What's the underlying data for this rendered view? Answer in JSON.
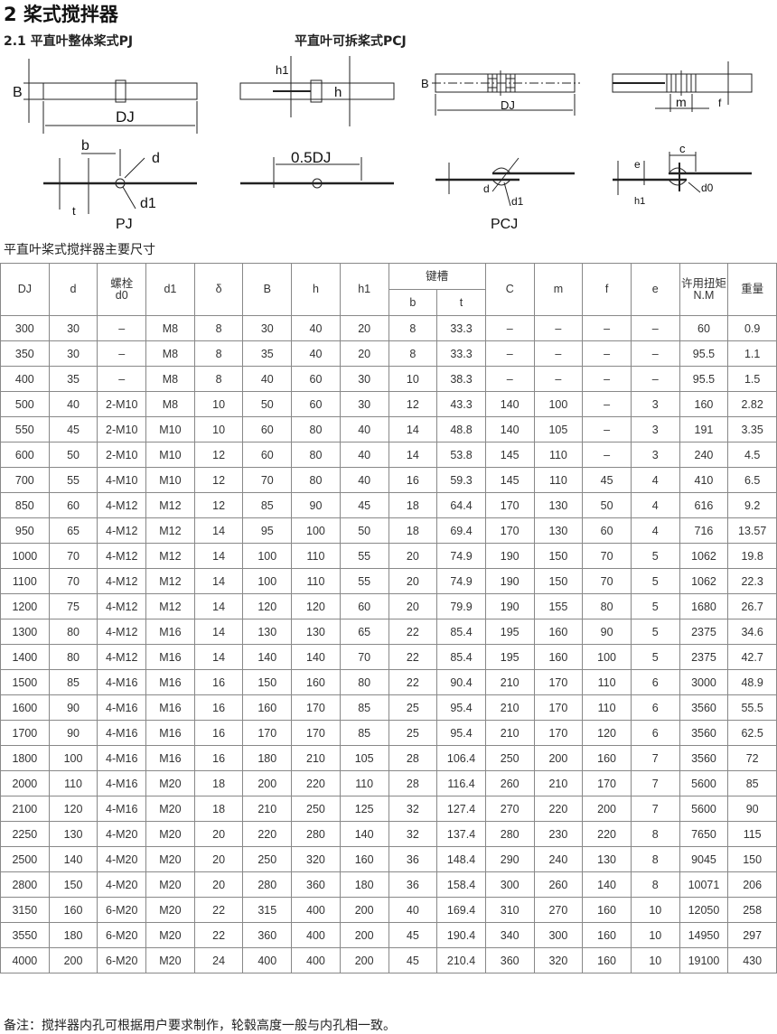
{
  "title": "2 桨式搅拌器",
  "subtitle_pj": "2.1 平直叶整体桨式PJ",
  "subtitle_pcj": "平直叶可拆桨式PCJ",
  "diagram_labels": {
    "B": "B",
    "DJ": "DJ",
    "h1": "h1",
    "h": "h",
    "b": "b",
    "d": "d",
    "d1": "d1",
    "t": "t",
    "half_dj": "0.5DJ",
    "pj": "PJ",
    "pcj": "PCJ",
    "m": "m",
    "f": "f",
    "c": "c",
    "e": "e",
    "d0": "d0"
  },
  "table_caption": "平直叶桨式搅拌器主要尺寸",
  "table": {
    "headers": {
      "DJ": "DJ",
      "d": "d",
      "d0_top": "螺栓",
      "d0": "d0",
      "d1": "d1",
      "delta": "δ",
      "B": "B",
      "h": "h",
      "h1": "h1",
      "keyway": "键槽",
      "b": "b",
      "t": "t",
      "C": "C",
      "m": "m",
      "f": "f",
      "e": "e",
      "torque_top": "许用扭矩",
      "torque_unit": "N.M",
      "weight": "重量"
    },
    "rows": [
      [
        "300",
        "30",
        "–",
        "M8",
        "8",
        "30",
        "40",
        "20",
        "8",
        "33.3",
        "–",
        "–",
        "–",
        "–",
        "60",
        "0.9"
      ],
      [
        "350",
        "30",
        "–",
        "M8",
        "8",
        "35",
        "40",
        "20",
        "8",
        "33.3",
        "–",
        "–",
        "–",
        "–",
        "95.5",
        "1.1"
      ],
      [
        "400",
        "35",
        "–",
        "M8",
        "8",
        "40",
        "60",
        "30",
        "10",
        "38.3",
        "–",
        "–",
        "–",
        "–",
        "95.5",
        "1.5"
      ],
      [
        "500",
        "40",
        "2-M10",
        "M8",
        "10",
        "50",
        "60",
        "30",
        "12",
        "43.3",
        "140",
        "100",
        "–",
        "3",
        "160",
        "2.82"
      ],
      [
        "550",
        "45",
        "2-M10",
        "M10",
        "10",
        "60",
        "80",
        "40",
        "14",
        "48.8",
        "140",
        "105",
        "–",
        "3",
        "191",
        "3.35"
      ],
      [
        "600",
        "50",
        "2-M10",
        "M10",
        "12",
        "60",
        "80",
        "40",
        "14",
        "53.8",
        "145",
        "110",
        "–",
        "3",
        "240",
        "4.5"
      ],
      [
        "700",
        "55",
        "4-M10",
        "M10",
        "12",
        "70",
        "80",
        "40",
        "16",
        "59.3",
        "145",
        "110",
        "45",
        "4",
        "410",
        "6.5"
      ],
      [
        "850",
        "60",
        "4-M12",
        "M12",
        "12",
        "85",
        "90",
        "45",
        "18",
        "64.4",
        "170",
        "130",
        "50",
        "4",
        "616",
        "9.2"
      ],
      [
        "950",
        "65",
        "4-M12",
        "M12",
        "14",
        "95",
        "100",
        "50",
        "18",
        "69.4",
        "170",
        "130",
        "60",
        "4",
        "716",
        "13.57"
      ],
      [
        "1000",
        "70",
        "4-M12",
        "M12",
        "14",
        "100",
        "110",
        "55",
        "20",
        "74.9",
        "190",
        "150",
        "70",
        "5",
        "1062",
        "19.8"
      ],
      [
        "1100",
        "70",
        "4-M12",
        "M12",
        "14",
        "100",
        "110",
        "55",
        "20",
        "74.9",
        "190",
        "150",
        "70",
        "5",
        "1062",
        "22.3"
      ],
      [
        "1200",
        "75",
        "4-M12",
        "M12",
        "14",
        "120",
        "120",
        "60",
        "20",
        "79.9",
        "190",
        "155",
        "80",
        "5",
        "1680",
        "26.7"
      ],
      [
        "1300",
        "80",
        "4-M12",
        "M16",
        "14",
        "130",
        "130",
        "65",
        "22",
        "85.4",
        "195",
        "160",
        "90",
        "5",
        "2375",
        "34.6"
      ],
      [
        "1400",
        "80",
        "4-M12",
        "M16",
        "14",
        "140",
        "140",
        "70",
        "22",
        "85.4",
        "195",
        "160",
        "100",
        "5",
        "2375",
        "42.7"
      ],
      [
        "1500",
        "85",
        "4-M16",
        "M16",
        "16",
        "150",
        "160",
        "80",
        "22",
        "90.4",
        "210",
        "170",
        "110",
        "6",
        "3000",
        "48.9"
      ],
      [
        "1600",
        "90",
        "4-M16",
        "M16",
        "16",
        "160",
        "170",
        "85",
        "25",
        "95.4",
        "210",
        "170",
        "110",
        "6",
        "3560",
        "55.5"
      ],
      [
        "1700",
        "90",
        "4-M16",
        "M16",
        "16",
        "170",
        "170",
        "85",
        "25",
        "95.4",
        "210",
        "170",
        "120",
        "6",
        "3560",
        "62.5"
      ],
      [
        "1800",
        "100",
        "4-M16",
        "M16",
        "16",
        "180",
        "210",
        "105",
        "28",
        "106.4",
        "250",
        "200",
        "160",
        "7",
        "3560",
        "72"
      ],
      [
        "2000",
        "110",
        "4-M16",
        "M20",
        "18",
        "200",
        "220",
        "110",
        "28",
        "116.4",
        "260",
        "210",
        "170",
        "7",
        "5600",
        "85"
      ],
      [
        "2100",
        "120",
        "4-M16",
        "M20",
        "18",
        "210",
        "250",
        "125",
        "32",
        "127.4",
        "270",
        "220",
        "200",
        "7",
        "5600",
        "90"
      ],
      [
        "2250",
        "130",
        "4-M20",
        "M20",
        "20",
        "220",
        "280",
        "140",
        "32",
        "137.4",
        "280",
        "230",
        "220",
        "8",
        "7650",
        "115"
      ],
      [
        "2500",
        "140",
        "4-M20",
        "M20",
        "20",
        "250",
        "320",
        "160",
        "36",
        "148.4",
        "290",
        "240",
        "130",
        "8",
        "9045",
        "150"
      ],
      [
        "2800",
        "150",
        "4-M20",
        "M20",
        "20",
        "280",
        "360",
        "180",
        "36",
        "158.4",
        "300",
        "260",
        "140",
        "8",
        "10071",
        "206"
      ],
      [
        "3150",
        "160",
        "6-M20",
        "M20",
        "22",
        "315",
        "400",
        "200",
        "40",
        "169.4",
        "310",
        "270",
        "160",
        "10",
        "12050",
        "258"
      ],
      [
        "3550",
        "180",
        "6-M20",
        "M20",
        "22",
        "360",
        "400",
        "200",
        "45",
        "190.4",
        "340",
        "300",
        "160",
        "10",
        "14950",
        "297"
      ],
      [
        "4000",
        "200",
        "6-M20",
        "M20",
        "24",
        "400",
        "400",
        "200",
        "45",
        "210.4",
        "360",
        "320",
        "160",
        "10",
        "19100",
        "430"
      ]
    ]
  },
  "note": "备注：搅拌器内孔可根据用户要求制作，轮毂高度一般与内孔相一致。"
}
